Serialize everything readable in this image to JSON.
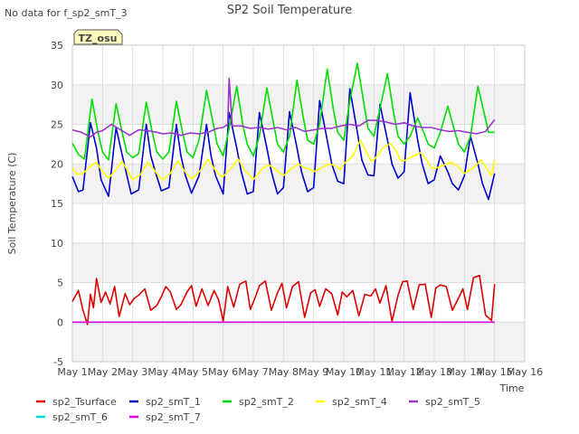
{
  "chart_data": {
    "type": "line",
    "title": "SP2 Soil Temperature",
    "top_left_note": "No data for f_sp2_smT_3",
    "badge": "TZ_osu",
    "ylabel": "Soil Temperature (C)",
    "xlabel": "Time",
    "ylim": [
      -5,
      35
    ],
    "yticks": [
      -5,
      0,
      5,
      10,
      15,
      20,
      25,
      30,
      35
    ],
    "xlim_day": [
      1,
      16
    ],
    "xticks": [
      {
        "day": 1,
        "label": "May 1"
      },
      {
        "day": 2,
        "label": "May 2"
      },
      {
        "day": 3,
        "label": "May 3"
      },
      {
        "day": 4,
        "label": "May 4"
      },
      {
        "day": 5,
        "label": "May 5"
      },
      {
        "day": 6,
        "label": "May 6"
      },
      {
        "day": 7,
        "label": "May 7"
      },
      {
        "day": 8,
        "label": "May 8"
      },
      {
        "day": 9,
        "label": "May 9"
      },
      {
        "day": 10,
        "label": "May 10"
      },
      {
        "day": 11,
        "label": "May 11"
      },
      {
        "day": 12,
        "label": "May 12"
      },
      {
        "day": 13,
        "label": "May 13"
      },
      {
        "day": 14,
        "label": "May 14"
      },
      {
        "day": 15,
        "label": "May 15"
      },
      {
        "day": 16,
        "label": "May 16"
      }
    ],
    "grid": true,
    "background_bands": true,
    "legend_position": "bottom",
    "series": [
      {
        "name": "sp2_Tsurface",
        "color": "#dd0000",
        "x": [
          1.0,
          1.2,
          1.35,
          1.5,
          1.6,
          1.7,
          1.8,
          1.95,
          2.1,
          2.25,
          2.4,
          2.55,
          2.75,
          2.9,
          3.05,
          3.2,
          3.4,
          3.6,
          3.8,
          3.95,
          4.1,
          4.25,
          4.45,
          4.6,
          4.8,
          4.95,
          5.1,
          5.3,
          5.5,
          5.7,
          5.85,
          6.0,
          6.15,
          6.35,
          6.55,
          6.75,
          6.9,
          7.05,
          7.2,
          7.4,
          7.6,
          7.8,
          7.95,
          8.1,
          8.3,
          8.5,
          8.7,
          8.9,
          9.05,
          9.2,
          9.4,
          9.6,
          9.8,
          9.95,
          10.1,
          10.3,
          10.5,
          10.7,
          10.9,
          11.05,
          11.2,
          11.4,
          11.6,
          11.8,
          11.95,
          12.1,
          12.3,
          12.5,
          12.7,
          12.9,
          13.05,
          13.2,
          13.4,
          13.6,
          13.8,
          13.95,
          14.1,
          14.3,
          14.5,
          14.7,
          14.9,
          15.0
        ],
        "y": [
          2.6,
          4.0,
          1.5,
          -0.3,
          3.5,
          1.8,
          5.5,
          2.5,
          3.8,
          2.3,
          4.5,
          0.7,
          3.6,
          2.2,
          3.0,
          3.4,
          4.2,
          1.5,
          2.1,
          3.2,
          4.5,
          3.8,
          1.6,
          2.2,
          3.8,
          4.6,
          2.0,
          4.2,
          2.1,
          4.0,
          2.8,
          0.1,
          4.5,
          1.9,
          4.8,
          5.2,
          1.6,
          3.0,
          4.6,
          5.2,
          1.5,
          3.7,
          4.9,
          1.8,
          4.5,
          5.1,
          0.6,
          3.7,
          4.1,
          2.0,
          4.2,
          3.6,
          0.9,
          3.8,
          3.2,
          4.0,
          0.8,
          3.5,
          3.3,
          4.2,
          2.4,
          4.6,
          0.1,
          3.4,
          5.1,
          5.2,
          1.6,
          4.7,
          4.8,
          0.6,
          4.3,
          4.7,
          4.5,
          1.5,
          3.0,
          4.2,
          1.6,
          5.6,
          5.9,
          0.9,
          0.2,
          4.8
        ]
      },
      {
        "name": "sp2_smT_1",
        "color": "#0000cc",
        "x": [
          1.0,
          1.2,
          1.35,
          1.6,
          1.8,
          1.95,
          2.2,
          2.45,
          2.6,
          2.75,
          2.95,
          3.2,
          3.45,
          3.6,
          3.75,
          3.95,
          4.2,
          4.45,
          4.6,
          4.75,
          4.95,
          5.2,
          5.45,
          5.6,
          5.75,
          6.0,
          6.2,
          6.45,
          6.6,
          6.8,
          7.0,
          7.2,
          7.45,
          7.6,
          7.8,
          8.0,
          8.2,
          8.45,
          8.6,
          8.8,
          9.0,
          9.2,
          9.45,
          9.6,
          9.8,
          10.0,
          10.2,
          10.45,
          10.6,
          10.8,
          11.0,
          11.2,
          11.45,
          11.6,
          11.8,
          12.0,
          12.2,
          12.45,
          12.6,
          12.8,
          13.0,
          13.2,
          13.45,
          13.6,
          13.8,
          14.0,
          14.2,
          14.45,
          14.6,
          14.8,
          15.0
        ],
        "y": [
          18.4,
          16.5,
          16.7,
          25.2,
          22.0,
          18.0,
          15.9,
          24.6,
          22.0,
          19.5,
          16.2,
          16.7,
          25.0,
          21.0,
          19.0,
          16.6,
          17.0,
          25.0,
          21.0,
          18.5,
          16.3,
          18.5,
          25.0,
          21.0,
          18.5,
          16.2,
          26.5,
          22.0,
          19.0,
          16.2,
          16.5,
          26.5,
          22.0,
          19.0,
          16.2,
          17.0,
          26.6,
          22.0,
          19.0,
          16.5,
          17.0,
          28.0,
          23.0,
          20.0,
          17.8,
          17.5,
          29.5,
          24.0,
          20.5,
          18.6,
          18.5,
          27.5,
          23.0,
          20.0,
          18.2,
          19.0,
          29.0,
          23.0,
          20.0,
          17.5,
          18.0,
          21.0,
          19.0,
          17.5,
          16.7,
          18.5,
          23.5,
          20.0,
          17.5,
          15.5,
          18.8
        ]
      },
      {
        "name": "sp2_smT_2",
        "color": "#00dd00",
        "x": [
          1.0,
          1.2,
          1.4,
          1.65,
          1.85,
          2.0,
          2.2,
          2.45,
          2.65,
          2.8,
          3.0,
          3.2,
          3.45,
          3.65,
          3.8,
          4.0,
          4.2,
          4.45,
          4.65,
          4.8,
          5.0,
          5.2,
          5.45,
          5.65,
          5.8,
          6.0,
          6.2,
          6.45,
          6.65,
          6.8,
          7.0,
          7.2,
          7.45,
          7.65,
          7.8,
          8.0,
          8.2,
          8.45,
          8.65,
          8.8,
          9.0,
          9.2,
          9.45,
          9.65,
          9.8,
          10.0,
          10.2,
          10.45,
          10.65,
          10.8,
          11.0,
          11.2,
          11.45,
          11.65,
          11.8,
          12.0,
          12.2,
          12.45,
          12.65,
          12.8,
          13.0,
          13.2,
          13.45,
          13.65,
          13.8,
          14.0,
          14.2,
          14.45,
          14.65,
          14.8,
          15.0
        ],
        "y": [
          22.6,
          21.2,
          20.6,
          28.2,
          24.0,
          21.5,
          20.5,
          27.6,
          24.0,
          21.5,
          20.8,
          21.3,
          27.8,
          24.0,
          21.5,
          20.6,
          21.5,
          27.9,
          24.0,
          21.5,
          20.8,
          23.0,
          29.3,
          25.5,
          22.5,
          21.0,
          24.5,
          29.8,
          25.0,
          22.5,
          21.0,
          23.5,
          29.6,
          25.5,
          22.5,
          21.5,
          23.5,
          30.6,
          26.0,
          23.0,
          22.5,
          25.0,
          32.0,
          27.0,
          24.0,
          23.0,
          28.0,
          32.7,
          28.0,
          24.5,
          23.5,
          27.0,
          31.4,
          26.5,
          23.5,
          22.5,
          23.5,
          25.8,
          24.0,
          22.5,
          22.0,
          24.0,
          27.3,
          24.5,
          22.5,
          21.5,
          23.5,
          29.8,
          26.5,
          24.0,
          24.0
        ]
      },
      {
        "name": "sp2_smT_4",
        "color": "#ffff00",
        "x": [
          1.0,
          1.15,
          1.35,
          1.6,
          1.8,
          2.0,
          2.2,
          2.45,
          2.65,
          2.85,
          3.0,
          3.25,
          3.5,
          3.7,
          3.9,
          4.0,
          4.25,
          4.5,
          4.7,
          4.9,
          5.0,
          5.25,
          5.5,
          5.7,
          5.9,
          6.0,
          6.25,
          6.5,
          6.7,
          6.9,
          7.0,
          7.3,
          7.5,
          7.7,
          7.9,
          8.0,
          8.3,
          8.5,
          8.7,
          8.9,
          9.0,
          9.3,
          9.5,
          9.7,
          9.9,
          10.0,
          10.3,
          10.55,
          10.75,
          10.9,
          11.0,
          11.3,
          11.55,
          11.75,
          11.9,
          12.0,
          12.3,
          12.55,
          12.75,
          12.9,
          13.0,
          13.3,
          13.55,
          13.75,
          13.9,
          14.0,
          14.3,
          14.55,
          14.75,
          14.9,
          15.0
        ],
        "y": [
          19.5,
          18.7,
          18.8,
          19.7,
          20.2,
          19.0,
          18.2,
          19.3,
          20.3,
          19.0,
          18.0,
          18.6,
          20.2,
          19.3,
          18.3,
          18.0,
          18.8,
          20.4,
          19.2,
          18.3,
          18.2,
          19.2,
          20.6,
          19.4,
          18.5,
          18.4,
          19.4,
          20.6,
          19.3,
          18.5,
          18.0,
          19.4,
          19.9,
          19.4,
          18.8,
          18.5,
          19.5,
          20.0,
          19.5,
          19.3,
          19.0,
          19.6,
          20.0,
          19.8,
          19.3,
          20.0,
          21.0,
          23.0,
          21.5,
          20.4,
          20.5,
          22.0,
          22.6,
          21.5,
          20.4,
          20.4,
          21.0,
          21.4,
          20.5,
          19.5,
          19.4,
          19.8,
          20.2,
          19.8,
          19.2,
          18.8,
          19.5,
          20.5,
          19.4,
          18.5,
          20.5
        ]
      },
      {
        "name": "sp2_smT_5",
        "color": "#9933cc",
        "x": [
          1.0,
          1.3,
          1.6,
          1.8,
          2.0,
          2.3,
          2.6,
          2.9,
          3.2,
          3.5,
          3.8,
          4.0,
          4.3,
          4.6,
          4.9,
          5.2,
          5.5,
          5.8,
          6.0,
          6.15,
          6.2,
          6.3,
          6.6,
          6.9,
          7.2,
          7.5,
          7.8,
          8.1,
          8.4,
          8.7,
          9.0,
          9.3,
          9.6,
          9.9,
          10.2,
          10.5,
          10.8,
          11.1,
          11.4,
          11.7,
          12.0,
          12.3,
          12.6,
          12.9,
          13.2,
          13.5,
          13.8,
          14.1,
          14.4,
          14.7,
          15.0
        ],
        "y": [
          24.3,
          24.0,
          23.4,
          24.0,
          24.2,
          25.0,
          24.3,
          23.6,
          24.3,
          24.2,
          24.0,
          23.8,
          23.9,
          23.6,
          23.9,
          23.8,
          24.0,
          24.5,
          24.6,
          25.0,
          30.8,
          24.8,
          24.8,
          24.5,
          24.6,
          24.4,
          24.6,
          24.3,
          24.6,
          24.1,
          24.3,
          24.5,
          24.5,
          24.8,
          25.0,
          24.8,
          25.5,
          25.5,
          25.3,
          25.0,
          25.2,
          24.8,
          24.6,
          24.6,
          24.3,
          24.1,
          24.2,
          24.0,
          23.8,
          24.1,
          25.6
        ]
      },
      {
        "name": "sp2_smT_6",
        "color": "#00dddd",
        "x": [
          1.0,
          15.0
        ],
        "y": [
          0.0,
          0.0
        ]
      },
      {
        "name": "sp2_smT_7",
        "color": "#dd00dd",
        "x": [
          1.0,
          15.0
        ],
        "y": [
          0.0,
          0.0
        ]
      }
    ]
  }
}
